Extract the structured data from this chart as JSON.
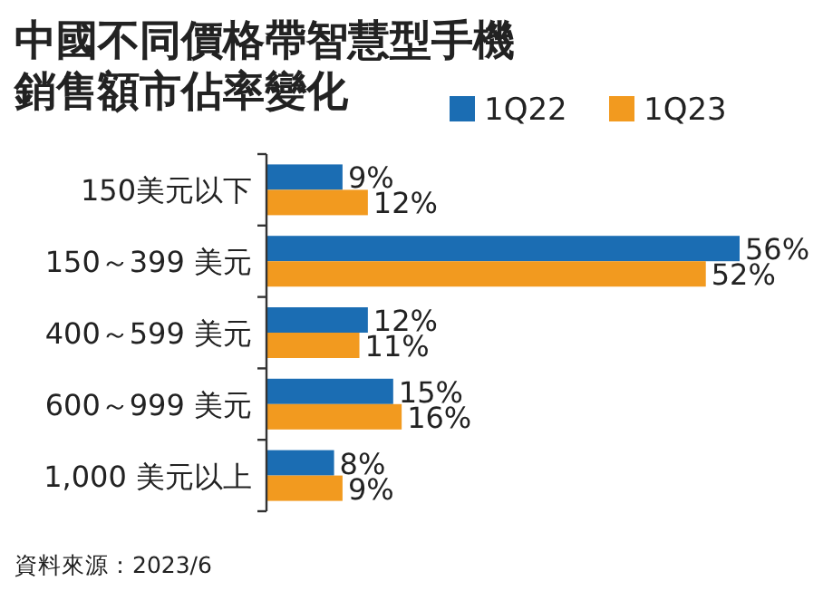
{
  "chart_data": {
    "type": "bar",
    "orientation": "horizontal",
    "title": "中國不同價格帶智慧型手機銷售額市佔率變化",
    "categories": [
      "150美元以下",
      "150～399 美元",
      "400～599 美元",
      "600～999 美元",
      "1,000 美元以上"
    ],
    "series": [
      {
        "name": "1Q22",
        "color": "#1b6db3",
        "values": [
          9,
          56,
          12,
          15,
          8
        ],
        "value_labels": [
          "9%",
          "56%",
          "12%",
          "15%",
          "8%"
        ]
      },
      {
        "name": "1Q23",
        "color": "#f29a1f",
        "values": [
          12,
          52,
          11,
          16,
          9
        ],
        "value_labels": [
          "12%",
          "52%",
          "11%",
          "16%",
          "9%"
        ]
      }
    ],
    "legend": "top right",
    "annotations": [
      "資料來源：2023/6"
    ]
  }
}
